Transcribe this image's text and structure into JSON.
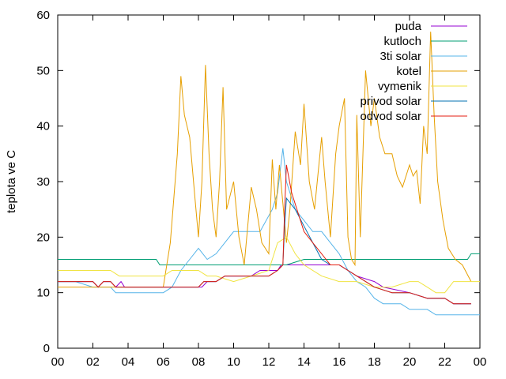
{
  "chart_data": {
    "type": "line",
    "xlabel": "",
    "ylabel": "teplota ve C",
    "xlim": [
      0,
      24
    ],
    "ylim": [
      0,
      60
    ],
    "x_ticks": [
      "00",
      "02",
      "04",
      "06",
      "08",
      "10",
      "12",
      "14",
      "16",
      "18",
      "20",
      "22",
      "00"
    ],
    "y_ticks": [
      "0",
      "10",
      "20",
      "30",
      "40",
      "50",
      "60"
    ],
    "grid": false,
    "legend_position": "top-right",
    "series": [
      {
        "name": "puda",
        "color": "#9400d3",
        "points": [
          [
            0,
            12
          ],
          [
            2,
            12
          ],
          [
            2.3,
            11
          ],
          [
            2.6,
            12
          ],
          [
            3,
            12
          ],
          [
            3.3,
            11
          ],
          [
            3.6,
            12
          ],
          [
            3.8,
            11
          ],
          [
            8.2,
            11
          ],
          [
            8.5,
            12
          ],
          [
            9,
            12
          ],
          [
            9.5,
            13
          ],
          [
            11,
            13
          ],
          [
            11.5,
            14
          ],
          [
            12.5,
            14
          ],
          [
            12.7,
            15
          ],
          [
            16,
            15
          ],
          [
            16.5,
            14
          ],
          [
            17,
            13
          ],
          [
            18,
            12
          ],
          [
            18.5,
            11
          ],
          [
            20,
            10
          ],
          [
            21,
            9
          ],
          [
            22,
            9
          ],
          [
            22.5,
            8
          ],
          [
            23.5,
            8
          ]
        ]
      },
      {
        "name": "kutloch",
        "color": "#009e73",
        "points": [
          [
            0,
            16
          ],
          [
            5.6,
            16
          ],
          [
            5.8,
            15
          ],
          [
            9,
            15
          ],
          [
            13,
            15
          ],
          [
            14,
            16
          ],
          [
            23.3,
            16
          ],
          [
            23.5,
            17
          ],
          [
            24,
            17
          ]
        ]
      },
      {
        "name": "3ti solar",
        "color": "#56b4e9",
        "points": [
          [
            0,
            12
          ],
          [
            1,
            12
          ],
          [
            2,
            11
          ],
          [
            2.5,
            11
          ],
          [
            3,
            11
          ],
          [
            3.3,
            10
          ],
          [
            6,
            10
          ],
          [
            6.5,
            11
          ],
          [
            7,
            14
          ],
          [
            7.5,
            16
          ],
          [
            8,
            18
          ],
          [
            8.5,
            16
          ],
          [
            9,
            17
          ],
          [
            10,
            21
          ],
          [
            11.5,
            21
          ],
          [
            12.2,
            25
          ],
          [
            12.5,
            28
          ],
          [
            12.8,
            36
          ],
          [
            13,
            30
          ],
          [
            13.5,
            25
          ],
          [
            14,
            23
          ],
          [
            14.5,
            21
          ],
          [
            15,
            21
          ],
          [
            15.5,
            19
          ],
          [
            16,
            17
          ],
          [
            16.5,
            14
          ],
          [
            17,
            12
          ],
          [
            17.5,
            11
          ],
          [
            18,
            9
          ],
          [
            18.5,
            8
          ],
          [
            19.5,
            8
          ],
          [
            20,
            7
          ],
          [
            21,
            7
          ],
          [
            21.5,
            6
          ],
          [
            24,
            6
          ]
        ]
      },
      {
        "name": "kotel",
        "color": "#e69f00",
        "points": [
          [
            0,
            11
          ],
          [
            6,
            11
          ],
          [
            6.4,
            19
          ],
          [
            6.8,
            35
          ],
          [
            7,
            49
          ],
          [
            7.2,
            42
          ],
          [
            7.5,
            38
          ],
          [
            7.8,
            27
          ],
          [
            8,
            20
          ],
          [
            8.2,
            30
          ],
          [
            8.4,
            51
          ],
          [
            8.6,
            35
          ],
          [
            8.8,
            25
          ],
          [
            9,
            20
          ],
          [
            9.2,
            30
          ],
          [
            9.4,
            47
          ],
          [
            9.6,
            25
          ],
          [
            10,
            30
          ],
          [
            10.3,
            20
          ],
          [
            10.6,
            15
          ],
          [
            11,
            29
          ],
          [
            11.3,
            25
          ],
          [
            11.6,
            19
          ],
          [
            12,
            17
          ],
          [
            12.2,
            34
          ],
          [
            12.4,
            25
          ],
          [
            12.6,
            33
          ],
          [
            13,
            19
          ],
          [
            13.2,
            25
          ],
          [
            13.5,
            39
          ],
          [
            13.8,
            33
          ],
          [
            14,
            44
          ],
          [
            14.3,
            30
          ],
          [
            14.6,
            25
          ],
          [
            15,
            38
          ],
          [
            15.2,
            30
          ],
          [
            15.5,
            20
          ],
          [
            15.8,
            35
          ],
          [
            16,
            40
          ],
          [
            16.3,
            45
          ],
          [
            16.5,
            20
          ],
          [
            16.7,
            16
          ],
          [
            16.9,
            15
          ],
          [
            17,
            42
          ],
          [
            17.2,
            20
          ],
          [
            17.5,
            50
          ],
          [
            17.8,
            40
          ],
          [
            18,
            45
          ],
          [
            18.3,
            38
          ],
          [
            18.6,
            35
          ],
          [
            19,
            35
          ],
          [
            19.3,
            31
          ],
          [
            19.6,
            29
          ],
          [
            20,
            33
          ],
          [
            20.2,
            31
          ],
          [
            20.4,
            32
          ],
          [
            20.6,
            26
          ],
          [
            20.8,
            40
          ],
          [
            21,
            35
          ],
          [
            21.2,
            57
          ],
          [
            21.4,
            42
          ],
          [
            21.6,
            30
          ],
          [
            21.9,
            23
          ],
          [
            22.2,
            18
          ],
          [
            22.6,
            16
          ],
          [
            23,
            15
          ],
          [
            23.5,
            12
          ]
        ]
      },
      {
        "name": "vymenik",
        "color": "#f0e442",
        "points": [
          [
            0,
            14
          ],
          [
            3,
            14
          ],
          [
            3.5,
            13
          ],
          [
            6,
            13
          ],
          [
            6.5,
            14
          ],
          [
            8,
            14
          ],
          [
            8.5,
            13
          ],
          [
            9,
            13
          ],
          [
            10,
            12
          ],
          [
            11,
            13
          ],
          [
            12,
            14
          ],
          [
            12.5,
            19
          ],
          [
            13,
            20
          ],
          [
            13.5,
            17
          ],
          [
            14,
            15
          ],
          [
            15,
            13
          ],
          [
            16,
            12
          ],
          [
            17,
            12
          ],
          [
            18,
            11
          ],
          [
            19,
            11
          ],
          [
            20,
            12
          ],
          [
            20.5,
            12
          ],
          [
            21,
            11
          ],
          [
            21.5,
            10
          ],
          [
            22,
            10
          ],
          [
            22.5,
            12
          ],
          [
            24,
            12
          ]
        ]
      },
      {
        "name": "privod solar",
        "color": "#0072b2",
        "points": [
          [
            0,
            12
          ],
          [
            2,
            12
          ],
          [
            2.3,
            11
          ],
          [
            2.6,
            12
          ],
          [
            3,
            12
          ],
          [
            3.3,
            11
          ],
          [
            8,
            11
          ],
          [
            8.3,
            12
          ],
          [
            9,
            12
          ],
          [
            9.5,
            13
          ],
          [
            12,
            13
          ],
          [
            12.5,
            14
          ],
          [
            12.8,
            15
          ],
          [
            12.9,
            22
          ],
          [
            13,
            27
          ],
          [
            13.5,
            25
          ],
          [
            14,
            22
          ],
          [
            14.5,
            19
          ],
          [
            15,
            16
          ],
          [
            15.5,
            15
          ],
          [
            16,
            15
          ],
          [
            16.5,
            14
          ],
          [
            17,
            13
          ],
          [
            17.5,
            12
          ],
          [
            18,
            11
          ],
          [
            19,
            10
          ],
          [
            20,
            10
          ],
          [
            21,
            9
          ],
          [
            22,
            9
          ],
          [
            22.5,
            8
          ],
          [
            23.5,
            8
          ]
        ]
      },
      {
        "name": "odvod solar",
        "color": "#e51e10",
        "points": [
          [
            0,
            12
          ],
          [
            2,
            12
          ],
          [
            2.3,
            11
          ],
          [
            2.6,
            12
          ],
          [
            3,
            12
          ],
          [
            3.3,
            11
          ],
          [
            8,
            11
          ],
          [
            8.3,
            12
          ],
          [
            9,
            12
          ],
          [
            9.5,
            13
          ],
          [
            12,
            13
          ],
          [
            12.5,
            14
          ],
          [
            12.8,
            15
          ],
          [
            12.9,
            25
          ],
          [
            13,
            33
          ],
          [
            13.3,
            28
          ],
          [
            13.7,
            24
          ],
          [
            14,
            21
          ],
          [
            14.5,
            19
          ],
          [
            15,
            17
          ],
          [
            15.5,
            15
          ],
          [
            16,
            15
          ],
          [
            16.5,
            14
          ],
          [
            17,
            13
          ],
          [
            17.5,
            12
          ],
          [
            18,
            11
          ],
          [
            19,
            10
          ],
          [
            20,
            10
          ],
          [
            21,
            9
          ],
          [
            22,
            9
          ],
          [
            22.5,
            8
          ],
          [
            23.5,
            8
          ]
        ]
      }
    ]
  }
}
